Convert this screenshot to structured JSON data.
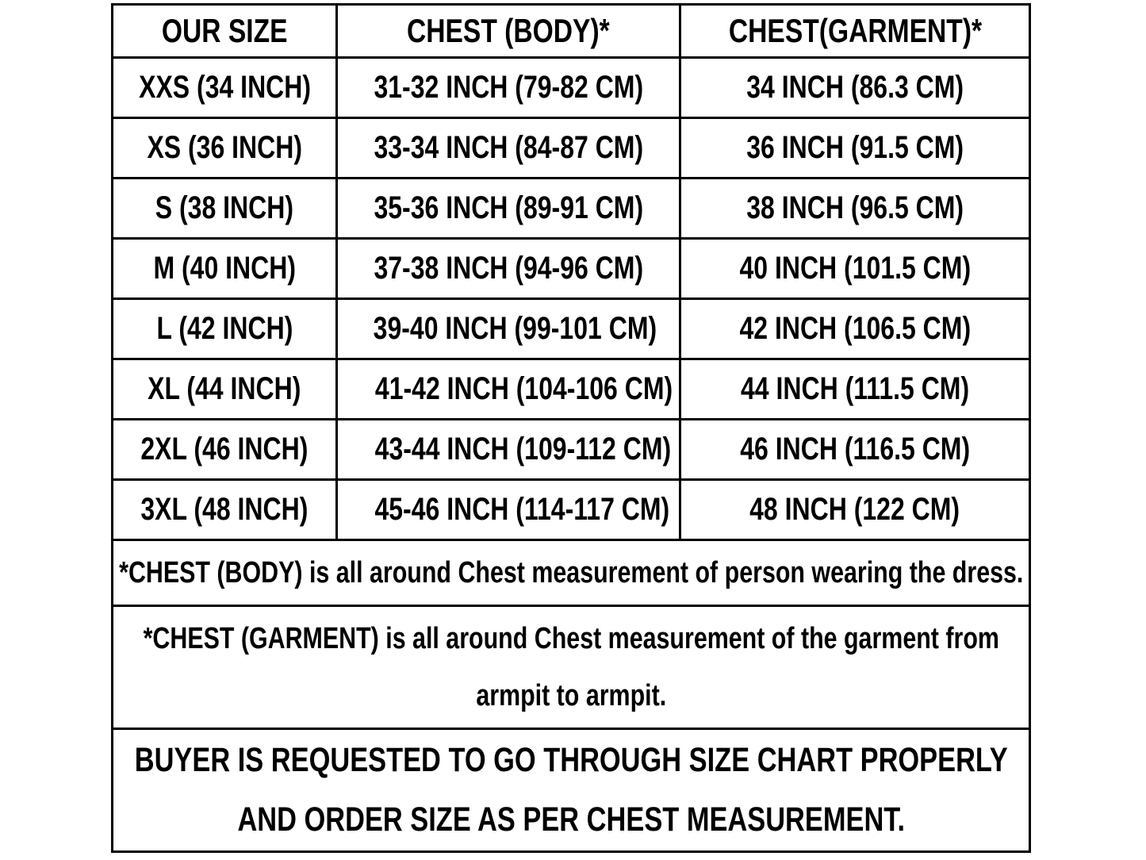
{
  "table": {
    "headers": [
      "OUR SIZE",
      "CHEST (BODY)*",
      "CHEST(GARMENT)*"
    ],
    "rows": [
      [
        "XXS (34 INCH)",
        "31-32 INCH (79-82 CM)",
        "34 INCH (86.3 CM)"
      ],
      [
        "XS (36 INCH)",
        "33-34 INCH (84-87 CM)",
        "36 INCH (91.5 CM)"
      ],
      [
        "S (38 INCH)",
        "35-36 INCH (89-91 CM)",
        "38 INCH (96.5 CM)"
      ],
      [
        "M (40 INCH)",
        "37-38 INCH (94-96 CM)",
        "40 INCH (101.5 CM)"
      ],
      [
        "L (42 INCH)",
        "39-40 INCH (99-101 CM)",
        "42 INCH (106.5 CM)"
      ],
      [
        "XL (44 INCH)",
        "41-42 INCH (104-106 CM)",
        "44 INCH (111.5 CM)"
      ],
      [
        "2XL (46 INCH)",
        "43-44 INCH (109-112 CM)",
        "46 INCH (116.5 CM)"
      ],
      [
        "3XL (48 INCH)",
        "45-46 INCH (114-117 CM)",
        "48 INCH (122 CM)"
      ]
    ],
    "notes": [
      "*CHEST (BODY) is all around Chest measurement of person wearing the dress.",
      "*CHEST (GARMENT) is all around Chest measurement of the garment from armpit to armpit.",
      "BUYER IS REQUESTED TO GO THROUGH SIZE CHART PROPERLY AND ORDER SIZE AS PER CHEST MEASUREMENT."
    ]
  },
  "colors": {
    "border": "#000000",
    "text": "#000000",
    "background": "#ffffff"
  }
}
